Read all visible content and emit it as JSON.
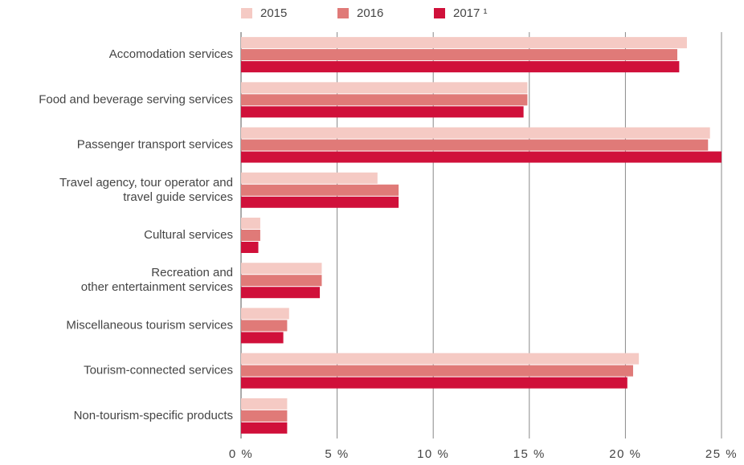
{
  "chart_data": {
    "type": "hbar",
    "categories": [
      "Accomodation services",
      "Food and beverage serving services",
      "Passenger transport services",
      "Travel agency, tour operator and\ntravel guide services",
      "Cultural services",
      "Recreation and\nother entertainment services",
      "Miscellaneous tourism services",
      "Tourism-connected services",
      "Non-tourism-specific products"
    ],
    "series": [
      {
        "name": "2015",
        "color": "#f5cac4",
        "values": [
          23.2,
          14.9,
          24.4,
          7.1,
          1.0,
          4.2,
          2.5,
          20.7,
          2.4
        ]
      },
      {
        "name": "2016",
        "color": "#e07a78",
        "values": [
          22.7,
          14.9,
          24.3,
          8.2,
          1.0,
          4.2,
          2.4,
          20.4,
          2.4
        ]
      },
      {
        "name": "2017 ¹",
        "color": "#d0103a",
        "values": [
          22.8,
          14.7,
          25.0,
          8.2,
          0.9,
          4.1,
          2.2,
          20.1,
          2.4
        ]
      }
    ],
    "xlim": [
      0,
      25
    ],
    "xticks": [
      {
        "value": 0,
        "label": "0 %"
      },
      {
        "value": 5,
        "label": "5 %"
      },
      {
        "value": 10,
        "label": "10 %"
      },
      {
        "value": 15,
        "label": "15 %"
      },
      {
        "value": 20,
        "label": "20 %"
      },
      {
        "value": 25,
        "label": "25 %"
      }
    ],
    "grid": true
  }
}
